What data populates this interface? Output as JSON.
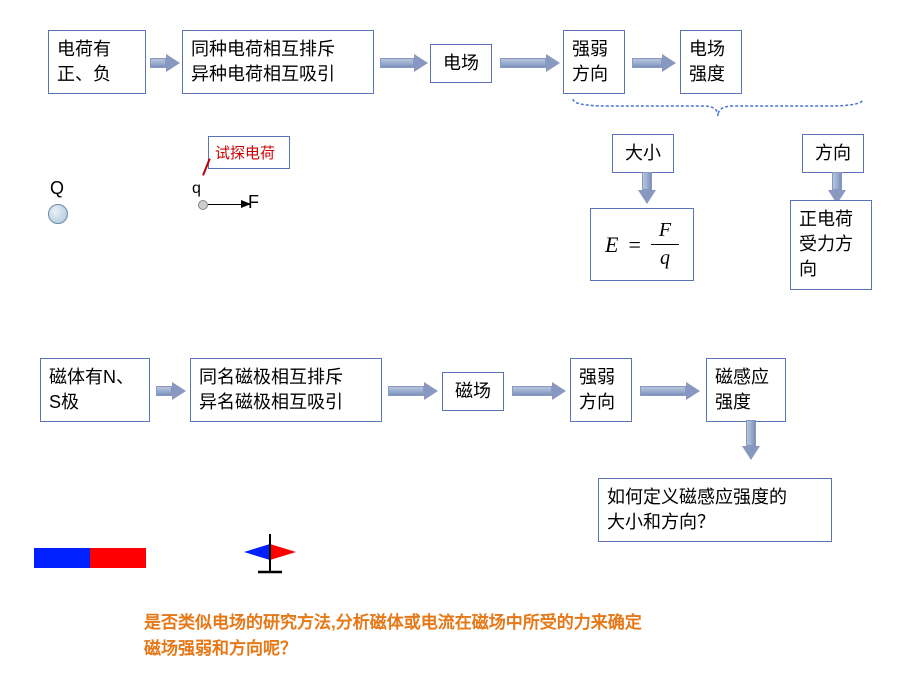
{
  "row1": {
    "box1": "电荷有\n正、负",
    "box2": "同种电荷相互排斥\n异种电荷相互吸引",
    "box3": "电场",
    "box4": "强弱\n方向",
    "box5": "电场\n强度"
  },
  "row1_children": {
    "size": "大小",
    "direction": "方向",
    "direction_desc": "正电荷\n受力方\n向"
  },
  "formula": {
    "lhs": "E",
    "eq": "=",
    "num": "F",
    "den": "q"
  },
  "probe": {
    "label": "试探电荷",
    "Q": "Q",
    "q": "q",
    "F": "F"
  },
  "row2": {
    "box1": "磁体有N、\nS极",
    "box2": "同名磁极相互排斥\n异名磁极相互吸引",
    "box3": "磁场",
    "box4": "强弱\n方向",
    "box5": "磁感应\n强度"
  },
  "question_box": "如何定义磁感应强度的\n大小和方向？",
  "bottom_text": "是否类似电场的研究方法,分析磁体或电流在磁场中所受的力来确定\n磁场强弱和方向呢？",
  "colors": {
    "box_border": "#5c72b6",
    "arrow_fill": "#8898c0",
    "brace": "#4a74d8",
    "red_text": "#d00000",
    "orange_text": "#e67817",
    "magnet_blue": "#0020ff",
    "magnet_red": "#ff0000"
  }
}
